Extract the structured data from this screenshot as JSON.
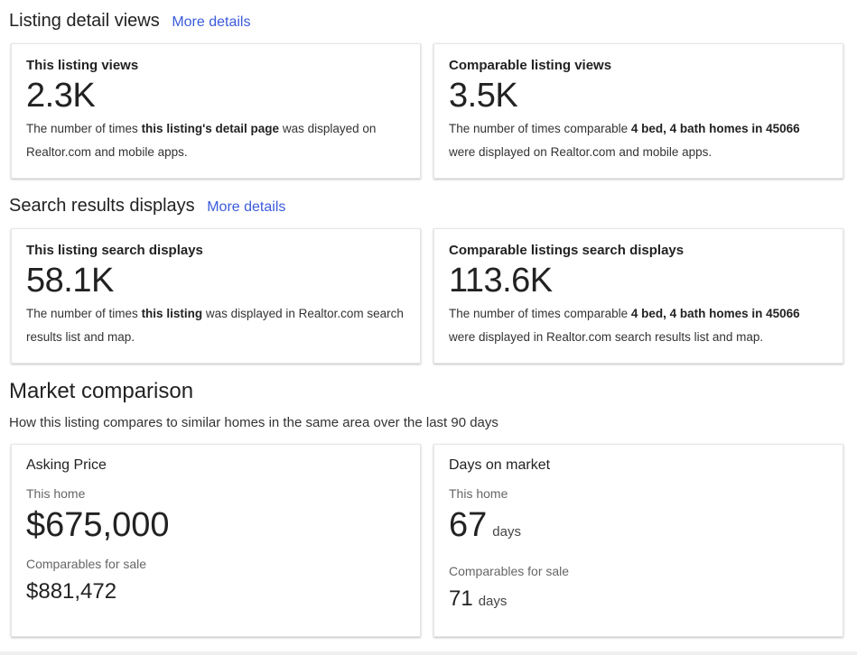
{
  "listing_views": {
    "heading": "Listing detail views",
    "more_link": "More details",
    "this_card": {
      "title": "This listing views",
      "value": "2.3K",
      "desc_pre": "The number of times ",
      "desc_bold": "this listing's detail page",
      "desc_post": " was displayed on Realtor.com and mobile apps."
    },
    "comp_card": {
      "title": "Comparable listing views",
      "value": "3.5K",
      "desc_pre": "The number of times comparable ",
      "desc_bold": "4 bed, 4 bath homes in 45066",
      "desc_post": " were displayed on Realtor.com and mobile apps."
    }
  },
  "search_displays": {
    "heading": "Search results displays",
    "more_link": "More details",
    "this_card": {
      "title": "This listing search displays",
      "value": "58.1K",
      "desc_pre": "The number of times ",
      "desc_bold": "this listing",
      "desc_post": " was displayed in Realtor.com search results list and map."
    },
    "comp_card": {
      "title": "Comparable listings search displays",
      "value": "113.6K",
      "desc_pre": "The number of times comparable ",
      "desc_bold": "4 bed, 4 bath homes in 45066",
      "desc_post": " were displayed in Realtor.com search results list and map."
    }
  },
  "market": {
    "heading": "Market comparison",
    "subheading": "How this listing compares to similar homes in the same area over the last 90 days",
    "asking": {
      "title": "Asking Price",
      "this_label": "This home",
      "this_value": "$675,000",
      "comp_label": "Comparables for sale",
      "comp_value": "$881,472"
    },
    "days": {
      "title": "Days on market",
      "this_label": "This home",
      "this_value": "67",
      "this_unit": "days",
      "comp_label": "Comparables for sale",
      "comp_value": "71",
      "comp_unit": "days"
    }
  }
}
